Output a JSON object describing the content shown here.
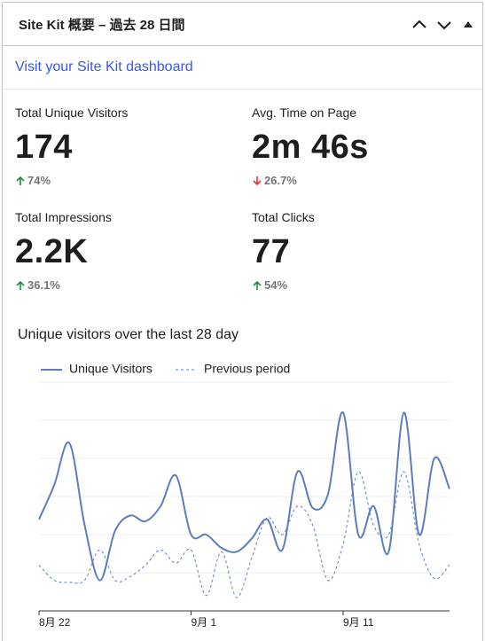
{
  "header": {
    "title": "Site Kit 概要 – 過去 28 日間"
  },
  "link": "Visit your Site Kit dashboard",
  "metrics": [
    {
      "label": "Total Unique Visitors",
      "value": "174",
      "change": "74%",
      "direction": "up"
    },
    {
      "label": "Avg. Time on Page",
      "value": "2m 46s",
      "change": "26.7%",
      "direction": "down"
    },
    {
      "label": "Total Impressions",
      "value": "2.2K",
      "change": "36.1%",
      "direction": "up"
    },
    {
      "label": "Total Clicks",
      "value": "77",
      "change": "54%",
      "direction": "up"
    }
  ],
  "chart_data": {
    "type": "line",
    "title": "Unique visitors over the last 28 day",
    "categories": [
      "8月 22",
      null,
      null,
      null,
      null,
      null,
      null,
      null,
      null,
      null,
      "9月 1",
      null,
      null,
      null,
      null,
      null,
      null,
      null,
      null,
      null,
      "9月 11",
      null,
      null,
      null,
      null,
      null,
      null,
      null
    ],
    "series": [
      {
        "name": "Unique Visitors",
        "color": "#5e7dbc",
        "dashed": false,
        "values": [
          4.8,
          6.6,
          8.8,
          4.5,
          1.6,
          4.2,
          5.0,
          4.7,
          5.5,
          7.1,
          4.0,
          4.0,
          3.3,
          3.1,
          3.8,
          4.8,
          3.2,
          7.3,
          5.4,
          6.1,
          10.4,
          4.0,
          5.5,
          3.1,
          10.4,
          4.0,
          8.0,
          6.4
        ]
      },
      {
        "name": "Previous period",
        "color": "#5e7dbc",
        "dashed": true,
        "values": [
          2.4,
          1.6,
          1.5,
          1.6,
          3.2,
          1.6,
          1.8,
          2.4,
          3.2,
          2.5,
          3.2,
          0.8,
          3.1,
          0.7,
          2.8,
          4.9,
          4.0,
          5.5,
          4.5,
          1.6,
          3.5,
          7.3,
          4.5,
          4.0,
          7.3,
          3.5,
          1.7,
          2.4
        ]
      }
    ],
    "ylim": [
      0,
      12
    ],
    "yticks": [
      0,
      2,
      4,
      6,
      8,
      10,
      12
    ],
    "grid": true
  }
}
